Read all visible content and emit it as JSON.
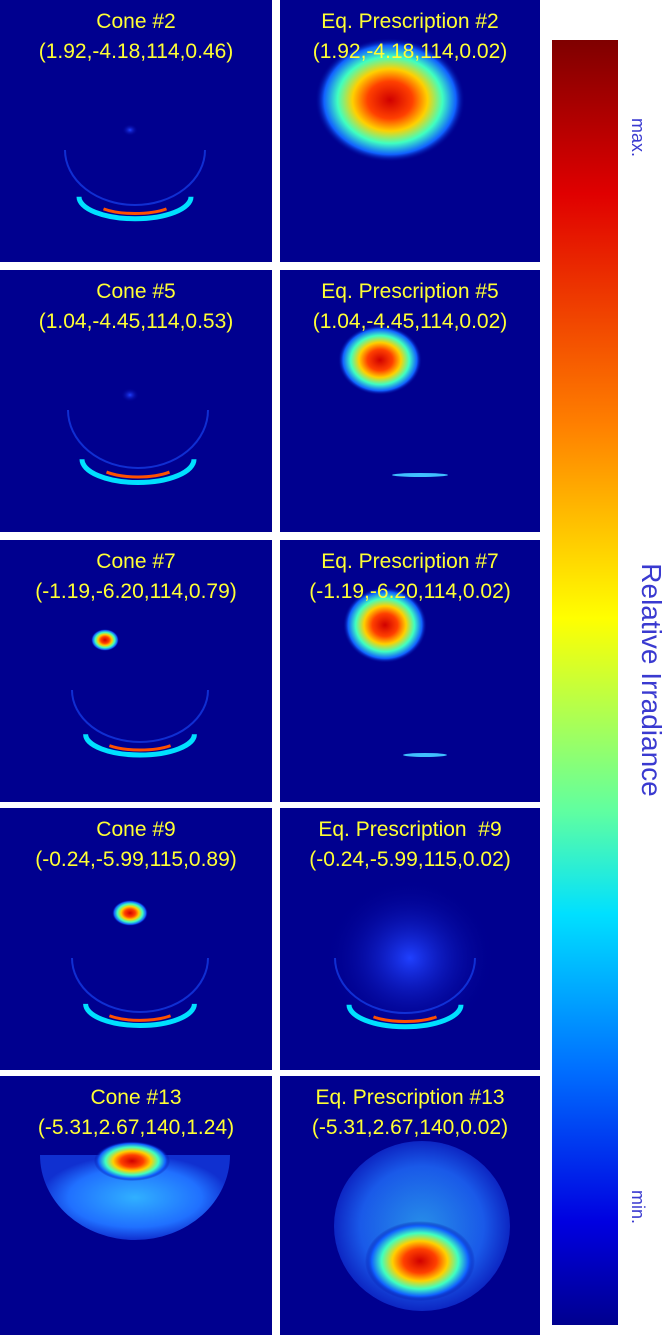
{
  "panels": [
    {
      "title": "Cone #2",
      "params": "(1.92,-4.18,114,0.46)"
    },
    {
      "title": "Eq. Prescription #2",
      "params": "(1.92,-4.18,114,0.02)"
    },
    {
      "title": "Cone #5",
      "params": "(1.04,-4.45,114,0.53)"
    },
    {
      "title": "Eq. Prescription #5",
      "params": "(1.04,-4.45,114,0.02)"
    },
    {
      "title": "Cone #7",
      "params": "(-1.19,-6.20,114,0.79)"
    },
    {
      "title": "Eq. Prescription #7",
      "params": "(-1.19,-6.20,114,0.02)"
    },
    {
      "title": "Cone #9",
      "params": "(-0.24,-5.99,115,0.89)"
    },
    {
      "title": "Eq. Prescription  #9",
      "params": "(-0.24,-5.99,115,0.02)"
    },
    {
      "title": "Cone #13",
      "params": "(-5.31,2.67,140,1.24)"
    },
    {
      "title": "Eq. Prescription #13",
      "params": "(-5.31,2.67,140,0.02)"
    }
  ],
  "colorbar": {
    "label": "Relative Irradiance",
    "max_label": "max.",
    "min_label": "min."
  }
}
